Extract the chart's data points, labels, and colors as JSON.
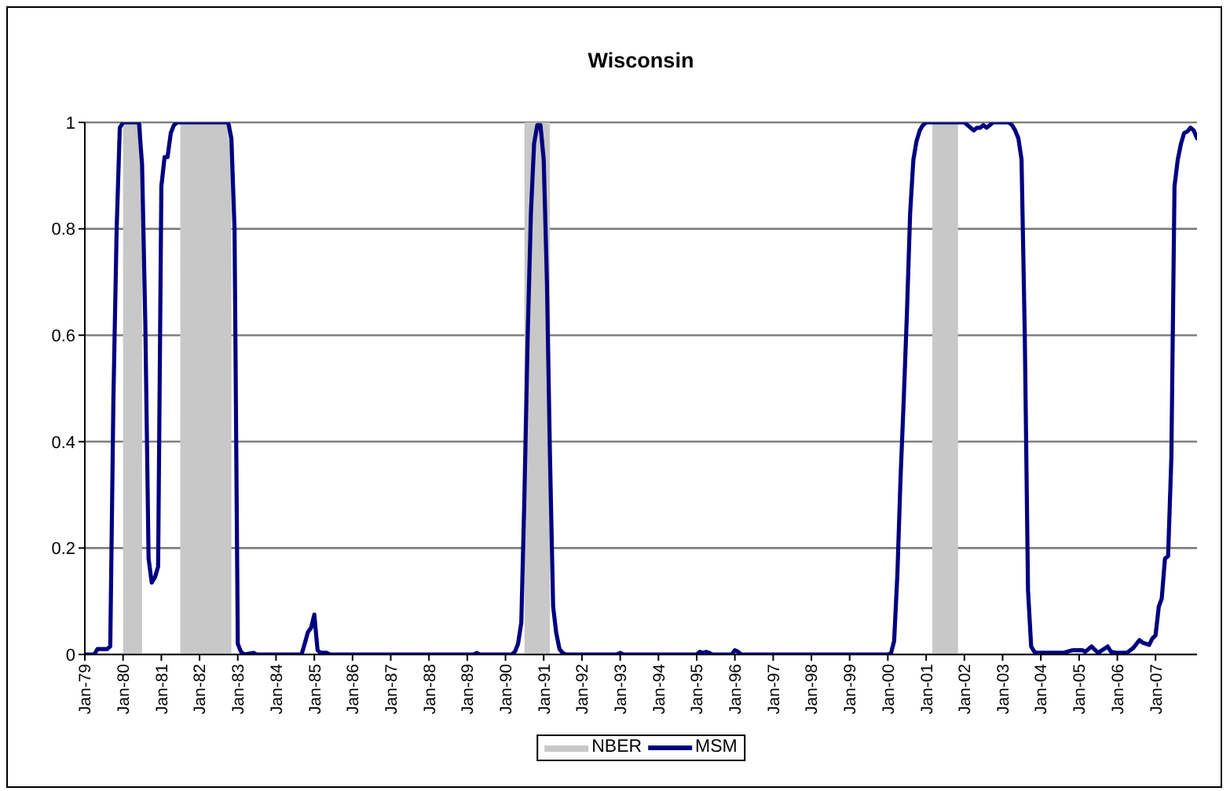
{
  "chart_data": {
    "type": "line",
    "title": "Wisconsin",
    "x": [
      "1979-01",
      "1979-04",
      "1979-05",
      "1979-08",
      "1979-09",
      "1979-10",
      "1979-11",
      "1979-12",
      "1980-01",
      "1980-06",
      "1980-07",
      "1980-08",
      "1980-09",
      "1980-10",
      "1980-11",
      "1980-12",
      "1981-01",
      "1981-02",
      "1981-03",
      "1981-04",
      "1981-05",
      "1981-06",
      "1982-10",
      "1982-11",
      "1982-12",
      "1983-01",
      "1983-02",
      "1983-03",
      "1983-06",
      "1983-07",
      "1984-09",
      "1984-10",
      "1984-11",
      "1984-12",
      "1985-01",
      "1985-02",
      "1985-03",
      "1985-05",
      "1985-06",
      "1989-03",
      "1989-04",
      "1989-05",
      "1990-03",
      "1990-04",
      "1990-05",
      "1990-06",
      "1990-07",
      "1990-08",
      "1990-09",
      "1990-10",
      "1990-11",
      "1990-12",
      "1991-01",
      "1991-02",
      "1991-03",
      "1991-04",
      "1991-05",
      "1991-06",
      "1991-07",
      "1991-08",
      "1992-12",
      "1993-01",
      "1993-02",
      "1995-01",
      "1995-02",
      "1995-03",
      "1995-04",
      "1995-05",
      "1995-06",
      "1995-12",
      "1996-01",
      "1996-02",
      "1996-03",
      "2000-01",
      "2000-02",
      "2000-03",
      "2000-04",
      "2000-05",
      "2000-06",
      "2000-07",
      "2000-08",
      "2000-09",
      "2000-10",
      "2000-11",
      "2000-12",
      "2001-01",
      "2002-01",
      "2002-02",
      "2002-03",
      "2002-04",
      "2002-05",
      "2002-06",
      "2002-07",
      "2002-08",
      "2002-09",
      "2002-10",
      "2003-03",
      "2003-04",
      "2003-05",
      "2003-06",
      "2003-07",
      "2003-08",
      "2003-09",
      "2003-10",
      "2003-11",
      "2003-12",
      "2004-08",
      "2004-11",
      "2005-02",
      "2005-03",
      "2005-05",
      "2005-07",
      "2005-10",
      "2005-11",
      "2006-01",
      "2006-04",
      "2006-06",
      "2006-08",
      "2006-09",
      "2006-11",
      "2006-12",
      "2007-01",
      "2007-02",
      "2007-03",
      "2007-04",
      "2007-05",
      "2007-06",
      "2007-07",
      "2007-08",
      "2007-09",
      "2007-10",
      "2007-11",
      "2007-12",
      "2008-01",
      "2008-02"
    ],
    "series": [
      {
        "name": "MSM",
        "color": "#000080",
        "values": [
          0,
          0,
          0.01,
          0.01,
          0.015,
          0.48,
          0.8,
          0.99,
          1,
          1,
          0.92,
          0.62,
          0.18,
          0.135,
          0.145,
          0.165,
          0.88,
          0.935,
          0.935,
          0.98,
          0.995,
          1,
          1,
          0.97,
          0.8,
          0.02,
          0.005,
          0,
          0.003,
          0,
          0,
          0.02,
          0.042,
          0.05,
          0.075,
          0.008,
          0.003,
          0.003,
          0,
          0,
          0.003,
          0,
          0,
          0.005,
          0.02,
          0.06,
          0.3,
          0.6,
          0.83,
          0.96,
          0.995,
          0.995,
          0.93,
          0.7,
          0.38,
          0.09,
          0.04,
          0.01,
          0.003,
          0,
          0,
          0.003,
          0,
          0,
          0.005,
          0.003,
          0.005,
          0.003,
          0,
          0,
          0.008,
          0.005,
          0,
          0,
          0.003,
          0.025,
          0.15,
          0.33,
          0.48,
          0.64,
          0.83,
          0.93,
          0.965,
          0.985,
          0.995,
          1,
          1,
          0.995,
          0.99,
          0.985,
          0.99,
          0.99,
          0.995,
          0.99,
          0.995,
          1,
          1,
          0.995,
          0.985,
          0.97,
          0.93,
          0.6,
          0.12,
          0.015,
          0.005,
          0.003,
          0.003,
          0.008,
          0.008,
          0.005,
          0.015,
          0.003,
          0.015,
          0.005,
          0.003,
          0.003,
          0.012,
          0.027,
          0.022,
          0.018,
          0.03,
          0.036,
          0.09,
          0.105,
          0.18,
          0.185,
          0.37,
          0.88,
          0.93,
          0.96,
          0.98,
          0.983,
          0.99,
          0.985,
          0.97
        ]
      }
    ],
    "xlim": [
      "1979-01",
      "2008-02"
    ],
    "xticks": [
      {
        "value": "1979-01",
        "label": "Jan-79"
      },
      {
        "value": "1980-01",
        "label": "Jan-80"
      },
      {
        "value": "1981-01",
        "label": "Jan-81"
      },
      {
        "value": "1982-01",
        "label": "Jan-82"
      },
      {
        "value": "1983-01",
        "label": "Jan-83"
      },
      {
        "value": "1984-01",
        "label": "Jan-84"
      },
      {
        "value": "1985-01",
        "label": "Jan-85"
      },
      {
        "value": "1986-01",
        "label": "Jan-86"
      },
      {
        "value": "1987-01",
        "label": "Jan-87"
      },
      {
        "value": "1988-01",
        "label": "Jan-88"
      },
      {
        "value": "1989-01",
        "label": "Jan-89"
      },
      {
        "value": "1990-01",
        "label": "Jan-90"
      },
      {
        "value": "1991-01",
        "label": "Jan-91"
      },
      {
        "value": "1992-01",
        "label": "Jan-92"
      },
      {
        "value": "1993-01",
        "label": "Jan-93"
      },
      {
        "value": "1994-01",
        "label": "Jan-94"
      },
      {
        "value": "1995-01",
        "label": "Jan-95"
      },
      {
        "value": "1996-01",
        "label": "Jan-96"
      },
      {
        "value": "1997-01",
        "label": "Jan-97"
      },
      {
        "value": "1998-01",
        "label": "Jan-98"
      },
      {
        "value": "1999-01",
        "label": "Jan-99"
      },
      {
        "value": "2000-01",
        "label": "Jan-00"
      },
      {
        "value": "2001-01",
        "label": "Jan-01"
      },
      {
        "value": "2002-01",
        "label": "Jan-02"
      },
      {
        "value": "2003-01",
        "label": "Jan-03"
      },
      {
        "value": "2004-01",
        "label": "Jan-04"
      },
      {
        "value": "2005-01",
        "label": "Jan-05"
      },
      {
        "value": "2006-01",
        "label": "Jan-06"
      },
      {
        "value": "2007-01",
        "label": "Jan-07"
      }
    ],
    "ylim": [
      0,
      1
    ],
    "yticks": [
      0,
      0.2,
      0.4,
      0.6,
      0.8,
      1
    ],
    "grid": "y",
    "legend": "bottom",
    "bands": [
      {
        "axis": "x",
        "from": "1980-01",
        "to": "1980-07",
        "label": "NBER",
        "color": "#c8c8c8"
      },
      {
        "axis": "x",
        "from": "1981-07",
        "to": "1982-11",
        "color": "#c8c8c8"
      },
      {
        "axis": "x",
        "from": "1990-07",
        "to": "1991-03",
        "color": "#c8c8c8"
      },
      {
        "axis": "x",
        "from": "2001-03",
        "to": "2001-11",
        "color": "#c8c8c8"
      }
    ]
  }
}
